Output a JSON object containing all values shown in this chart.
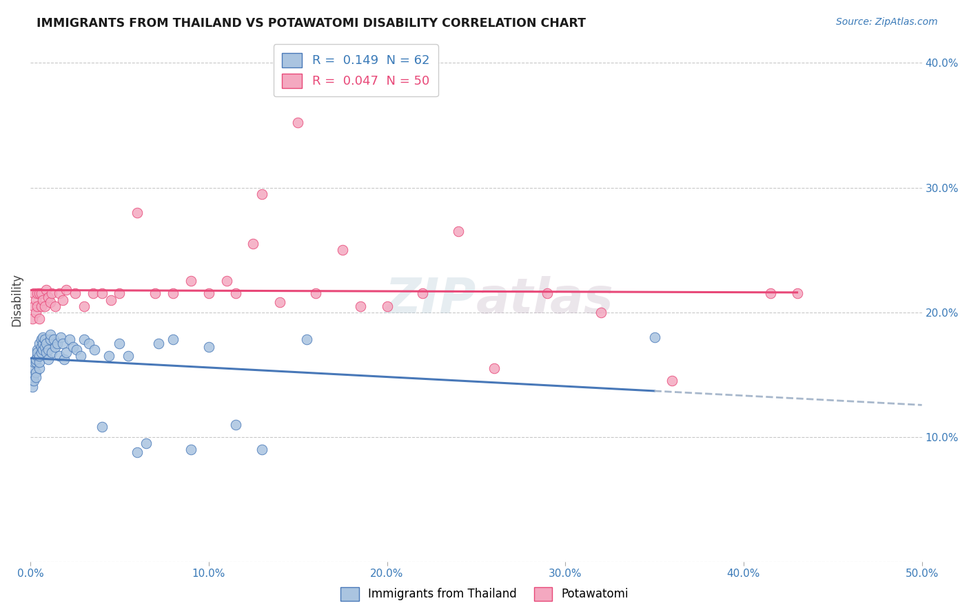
{
  "title": "IMMIGRANTS FROM THAILAND VS POTAWATOMI DISABILITY CORRELATION CHART",
  "source": "Source: ZipAtlas.com",
  "ylabel": "Disability",
  "xlim": [
    0.0,
    0.5
  ],
  "ylim": [
    0.0,
    0.42
  ],
  "x_ticks": [
    0.0,
    0.1,
    0.2,
    0.3,
    0.4,
    0.5
  ],
  "x_tick_labels": [
    "0.0%",
    "10.0%",
    "20.0%",
    "30.0%",
    "40.0%",
    "50.0%"
  ],
  "y_ticks": [
    0.0,
    0.1,
    0.2,
    0.3,
    0.4
  ],
  "right_y_tick_labels": [
    "",
    "10.0%",
    "20.0%",
    "30.0%",
    "40.0%"
  ],
  "legend_r1": "R =  0.149  N = 62",
  "legend_r2": "R =  0.047  N = 50",
  "color_blue": "#aac4e0",
  "color_pink": "#f4a8c0",
  "line_blue": "#4878b8",
  "line_pink": "#e84878",
  "line_dashed_color": "#a8b8cc",
  "watermark": "ZIPatlas",
  "blue_scatter_x": [
    0.001,
    0.001,
    0.001,
    0.002,
    0.002,
    0.002,
    0.002,
    0.003,
    0.003,
    0.003,
    0.003,
    0.004,
    0.004,
    0.004,
    0.005,
    0.005,
    0.005,
    0.005,
    0.006,
    0.006,
    0.006,
    0.007,
    0.007,
    0.007,
    0.008,
    0.008,
    0.009,
    0.009,
    0.01,
    0.01,
    0.011,
    0.011,
    0.012,
    0.013,
    0.014,
    0.015,
    0.016,
    0.017,
    0.018,
    0.019,
    0.02,
    0.022,
    0.024,
    0.026,
    0.028,
    0.03,
    0.033,
    0.036,
    0.04,
    0.044,
    0.05,
    0.055,
    0.06,
    0.065,
    0.072,
    0.08,
    0.09,
    0.1,
    0.115,
    0.13,
    0.155,
    0.35
  ],
  "blue_scatter_y": [
    0.15,
    0.145,
    0.14,
    0.15,
    0.145,
    0.155,
    0.16,
    0.152,
    0.148,
    0.16,
    0.162,
    0.17,
    0.165,
    0.168,
    0.155,
    0.16,
    0.165,
    0.175,
    0.168,
    0.172,
    0.178,
    0.17,
    0.175,
    0.18,
    0.172,
    0.178,
    0.168,
    0.175,
    0.162,
    0.17,
    0.178,
    0.182,
    0.168,
    0.178,
    0.172,
    0.175,
    0.165,
    0.18,
    0.175,
    0.162,
    0.168,
    0.178,
    0.172,
    0.17,
    0.165,
    0.178,
    0.175,
    0.17,
    0.108,
    0.165,
    0.175,
    0.165,
    0.088,
    0.095,
    0.175,
    0.178,
    0.09,
    0.172,
    0.11,
    0.09,
    0.178,
    0.18
  ],
  "pink_scatter_x": [
    0.001,
    0.002,
    0.002,
    0.003,
    0.003,
    0.004,
    0.004,
    0.005,
    0.005,
    0.006,
    0.006,
    0.007,
    0.008,
    0.009,
    0.01,
    0.011,
    0.012,
    0.014,
    0.016,
    0.018,
    0.02,
    0.025,
    0.03,
    0.035,
    0.04,
    0.045,
    0.05,
    0.06,
    0.07,
    0.08,
    0.09,
    0.1,
    0.11,
    0.115,
    0.125,
    0.13,
    0.14,
    0.15,
    0.16,
    0.175,
    0.185,
    0.2,
    0.22,
    0.24,
    0.26,
    0.29,
    0.32,
    0.36,
    0.415,
    0.43
  ],
  "pink_scatter_y": [
    0.195,
    0.205,
    0.215,
    0.2,
    0.21,
    0.215,
    0.205,
    0.195,
    0.215,
    0.205,
    0.215,
    0.21,
    0.205,
    0.218,
    0.212,
    0.208,
    0.215,
    0.205,
    0.215,
    0.21,
    0.218,
    0.215,
    0.205,
    0.215,
    0.215,
    0.21,
    0.215,
    0.28,
    0.215,
    0.215,
    0.225,
    0.215,
    0.225,
    0.215,
    0.255,
    0.295,
    0.208,
    0.352,
    0.215,
    0.25,
    0.205,
    0.205,
    0.215,
    0.265,
    0.155,
    0.215,
    0.2,
    0.145,
    0.215,
    0.215
  ]
}
